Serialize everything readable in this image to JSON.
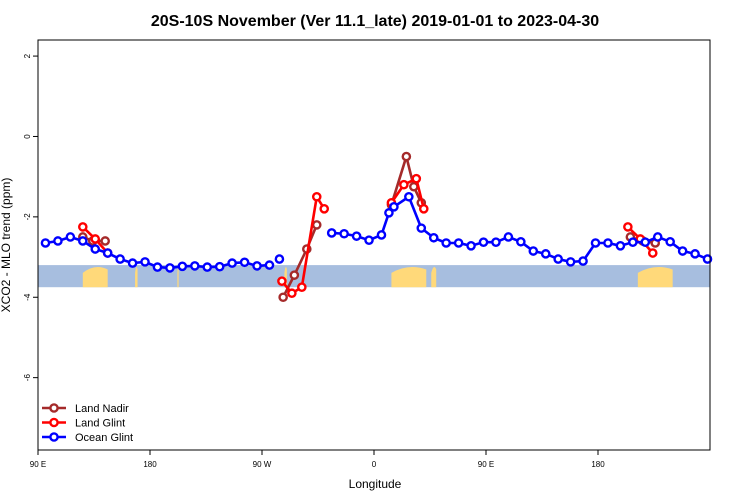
{
  "chart_data": {
    "type": "line",
    "title": "20S-10S November (Ver 11.1_late)   2019-01-01 to 2023-04-30",
    "xlabel": "Longitude",
    "ylabel": "XCO2 - MLO trend (ppm)",
    "xlim": [
      -90,
      180
    ],
    "ylim": [
      -7.8,
      2.4
    ],
    "x_ticks": [
      {
        "value": -90,
        "label": "90 E"
      },
      {
        "value": -45,
        "label": "180"
      },
      {
        "value": 0,
        "label": "90 W"
      },
      {
        "value": 45,
        "label": "0"
      },
      {
        "value": 90,
        "label": "90 E"
      },
      {
        "value": 135,
        "label": "180"
      }
    ],
    "y_ticks": [
      -6,
      -4,
      -2,
      0,
      2
    ],
    "legend_position": "bottom-left",
    "land_ocean_strip": {
      "ocean_color": "#a7bedf",
      "land_color": "#ffd97a",
      "y_range": [
        -3.75,
        -3.2
      ],
      "land_segments": [
        [
          -72,
          -62
        ],
        [
          -51,
          -50
        ],
        [
          -34,
          -33.5
        ],
        [
          9,
          10
        ],
        [
          52,
          66
        ],
        [
          68,
          70
        ],
        [
          151,
          165
        ]
      ]
    },
    "series": [
      {
        "name": "Land Nadir",
        "color": "#a52a2a",
        "segments": [
          {
            "x": [
              -72,
              -68,
              -63
            ],
            "y": [
              -2.5,
              -2.6,
              -2.6
            ]
          },
          {
            "x": [
              8.5,
              13,
              18,
              22
            ],
            "y": [
              -4.0,
              -3.45,
              -2.8,
              -2.2
            ]
          },
          {
            "x": [
              52,
              58,
              61,
              64
            ],
            "y": [
              -1.7,
              -0.5,
              -1.25,
              -1.65
            ]
          },
          {
            "x": [
              148,
              153,
              158
            ],
            "y": [
              -2.5,
              -2.6,
              -2.65
            ]
          }
        ]
      },
      {
        "name": "Land Glint",
        "color": "#ff0000",
        "segments": [
          {
            "x": [
              -72,
              -67,
              -62
            ],
            "y": [
              -2.25,
              -2.55,
              -2.9
            ]
          },
          {
            "x": [
              8,
              12,
              16,
              22,
              25
            ],
            "y": [
              -3.6,
              -3.9,
              -3.75,
              -1.5,
              -1.8
            ]
          },
          {
            "x": [
              52,
              57,
              62,
              65
            ],
            "y": [
              -1.65,
              -1.2,
              -1.05,
              -1.8
            ]
          },
          {
            "x": [
              147,
              152,
              157
            ],
            "y": [
              -2.25,
              -2.55,
              -2.9
            ]
          }
        ]
      },
      {
        "name": "Ocean Glint",
        "color": "#0000ff",
        "segments": [
          {
            "x": [
              -87,
              -82,
              -77,
              -72,
              -67,
              -62,
              -57,
              -52,
              -47,
              -42,
              -37,
              -32,
              -27,
              -22,
              -17,
              -12,
              -7,
              -2,
              3
            ],
            "y": [
              -2.65,
              -2.6,
              -2.5,
              -2.6,
              -2.8,
              -2.9,
              -3.05,
              -3.15,
              -3.12,
              -3.25,
              -3.27,
              -3.23,
              -3.22,
              -3.25,
              -3.24,
              -3.15,
              -3.13,
              -3.22,
              -3.2
            ]
          },
          {
            "x": [
              7
            ],
            "y": [
              -3.05
            ]
          },
          {
            "x": [
              28,
              33,
              38,
              43,
              48,
              51,
              53,
              59,
              64,
              69,
              74,
              79,
              84,
              89,
              94,
              99,
              104,
              109,
              114,
              119,
              124,
              129,
              134,
              139,
              144,
              149,
              154,
              159,
              164,
              169,
              174,
              179
            ],
            "y": [
              -2.4,
              -2.42,
              -2.48,
              -2.58,
              -2.45,
              -1.9,
              -1.75,
              -1.5,
              -2.28,
              -2.52,
              -2.65,
              -2.65,
              -2.72,
              -2.63,
              -2.63,
              -2.5,
              -2.62,
              -2.85,
              -2.92,
              -3.05,
              -3.12,
              -3.1,
              -2.65,
              -2.65,
              -2.72,
              -2.63,
              -2.63,
              -2.5,
              -2.62,
              -2.85,
              -2.92,
              -3.05
            ]
          }
        ]
      }
    ]
  }
}
